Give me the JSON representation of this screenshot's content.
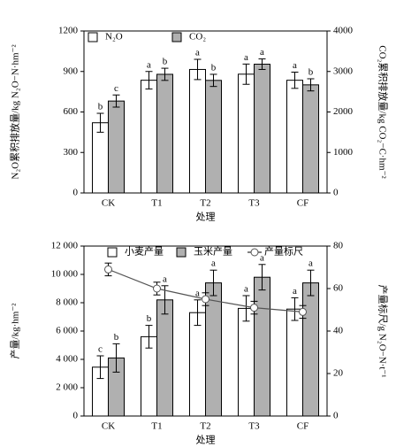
{
  "chart_data": [
    {
      "type": "bar",
      "categories": [
        "CK",
        "T1",
        "T2",
        "T3",
        "CF"
      ],
      "xlabel": "处理",
      "ylabel": "N₂O累积排放量/kg N₂O−N·hm⁻²",
      "y2label": "CO₂累积排放量/kg CO₂−C·hm⁻²",
      "ylim": [
        0,
        1200
      ],
      "yticks": [
        0,
        300,
        600,
        900,
        1200
      ],
      "y2lim": [
        0,
        4000
      ],
      "y2ticks": [
        0,
        1000,
        2000,
        3000,
        4000
      ],
      "series": [
        {
          "name": "N₂O",
          "color": "#ffffff",
          "values": [
            520,
            835,
            915,
            880,
            835
          ],
          "errors": [
            70,
            65,
            75,
            75,
            60
          ],
          "letters": [
            "b",
            "a",
            "a",
            "a",
            "a"
          ]
        },
        {
          "name": "CO₂",
          "color": "#b0b0b0",
          "axis": "y2",
          "values": [
            2270,
            2930,
            2780,
            3180,
            2670
          ],
          "errors": [
            150,
            150,
            150,
            130,
            150
          ],
          "letters": [
            "c",
            "b",
            "b",
            "a",
            "b"
          ]
        }
      ]
    },
    {
      "type": "bar",
      "categories": [
        "CK",
        "T1",
        "T2",
        "T3",
        "CF"
      ],
      "xlabel": "处理",
      "ylabel": "产量/kg·hm⁻²",
      "y2label": "产量标尺/g N₂O−N·t⁻¹",
      "ylim": [
        0,
        12000
      ],
      "yticks": [
        0,
        {
          "value": 2000,
          "label": "2 000"
        },
        {
          "value": 4000,
          "label": "4 000"
        },
        {
          "value": 6000,
          "label": "6 000"
        },
        {
          "value": 8000,
          "label": "8 000"
        },
        {
          "value": 10000,
          "label": "10 000"
        },
        {
          "value": 12000,
          "label": "12 000"
        }
      ],
      "y2lim": [
        0,
        80
      ],
      "y2ticks": [
        0,
        20,
        40,
        60,
        80
      ],
      "series": [
        {
          "name": "小麦产量",
          "color": "#ffffff",
          "values": [
            3450,
            5600,
            7300,
            7600,
            7550
          ],
          "errors": [
            800,
            800,
            900,
            900,
            800
          ],
          "letters": [
            "c",
            "b",
            "a",
            "a",
            "a"
          ]
        },
        {
          "name": "玉米产量",
          "color": "#b0b0b0",
          "values": [
            4100,
            8200,
            9400,
            9800,
            9400
          ],
          "errors": [
            1000,
            1000,
            900,
            900,
            900
          ],
          "letters": [
            "b",
            "a",
            "a",
            "a",
            "a"
          ]
        },
        {
          "name": "产量标尺",
          "color": "#555555",
          "kind": "line",
          "axis": "y2",
          "values": [
            69,
            60,
            55,
            51,
            49
          ],
          "errors": [
            3,
            3,
            3,
            3,
            3
          ]
        }
      ]
    }
  ]
}
